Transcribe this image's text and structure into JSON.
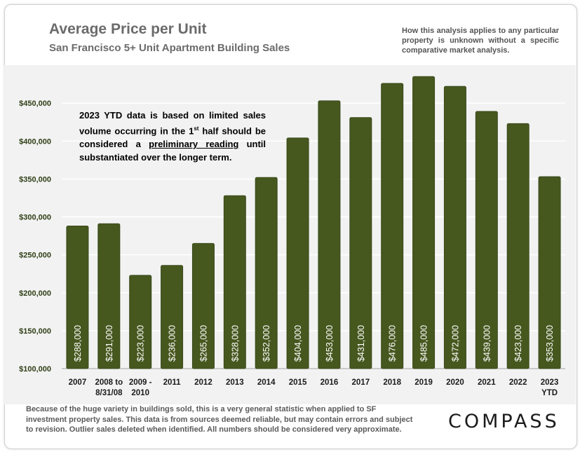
{
  "header": {
    "title": "Average Price per Unit",
    "subtitle": "San Francisco 5+ Unit Apartment Building Sales",
    "disclaimer": "How this analysis applies to any particular property is unknown without a specific comparative market analysis."
  },
  "note": {
    "part1": "2023 YTD data is based on limited sales volume occurring in the 1",
    "sup": "st",
    "part2": " half should be considered a ",
    "underlined": "preliminary reading",
    "part3": " until substantiated over the longer term."
  },
  "footer": {
    "text": "Because of the huge variety in buildings sold, this is a very general statistic when applied to SF investment property sales. This data is from sources deemed reliable, but may contain errors and subject to revision. Outlier sales deleted when identified. All numbers should be considered very approximate."
  },
  "logo": {
    "text": "COMPASS"
  },
  "colors": {
    "bar": "#47581f",
    "bar_outline": "#39481a",
    "axis_text": "#2f3f16",
    "plot_bg": "#f2f2f2",
    "grid": "#ffffff"
  },
  "chart_data": {
    "type": "bar",
    "title": "Average Price per Unit",
    "subtitle": "San Francisco 5+ Unit Apartment Building Sales",
    "categories": [
      [
        "2007"
      ],
      [
        "2008 to",
        "8/31/08"
      ],
      [
        "2009 -",
        "2010"
      ],
      [
        "2011"
      ],
      [
        "2012"
      ],
      [
        "2013"
      ],
      [
        "2014"
      ],
      [
        "2015"
      ],
      [
        "2016"
      ],
      [
        "2017"
      ],
      [
        "2018"
      ],
      [
        "2019"
      ],
      [
        "2020"
      ],
      [
        "2021"
      ],
      [
        "2022"
      ],
      [
        "2023",
        "YTD"
      ]
    ],
    "values": [
      288000,
      291000,
      223000,
      236000,
      265000,
      328000,
      352000,
      404000,
      453000,
      431000,
      476000,
      485000,
      472000,
      439000,
      423000,
      353000
    ],
    "value_labels": [
      "$288,000",
      "$291,000",
      "$223,000",
      "$236,000",
      "$265,000",
      "$328,000",
      "$352,000",
      "$404,000",
      "$453,000",
      "$431,000",
      "$476,000",
      "$485,000",
      "$472,000",
      "$439,000",
      "$423,000",
      "$353,000"
    ],
    "yticks": [
      100000,
      150000,
      200000,
      250000,
      300000,
      350000,
      400000,
      450000
    ],
    "ytick_labels": [
      "$100,000",
      "$150,000",
      "$200,000",
      "$250,000",
      "$300,000",
      "$350,000",
      "$400,000",
      "$450,000"
    ],
    "ylim": [
      100000,
      500000
    ],
    "xlabel": "",
    "ylabel": "",
    "grid": true,
    "legend": "none"
  }
}
